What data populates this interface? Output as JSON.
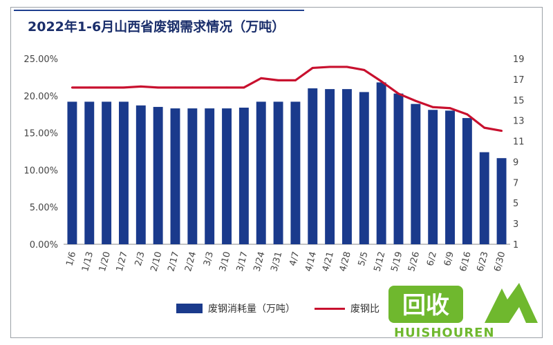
{
  "title": "2022年1-6月山西省废钢需求情况（万吨）",
  "colors": {
    "bar": "#1a3a8c",
    "line": "#c8102e",
    "title": "#1a2e6b",
    "watermark": "#6fb82e"
  },
  "legend": {
    "bar_label": "废钢消耗量（万吨）",
    "line_label": "废钢比"
  },
  "watermark": {
    "logo_text": "回收",
    "brand": "HUISHOUREN"
  },
  "chart_data": {
    "type": "bar+line",
    "categories": [
      "1/6",
      "1/13",
      "1/20",
      "1/27",
      "2/3",
      "2/10",
      "2/17",
      "2/24",
      "3/3",
      "3/10",
      "3/17",
      "3/24",
      "3/31",
      "4/7",
      "4/14",
      "4/21",
      "4/28",
      "5/5",
      "5/12",
      "5/19",
      "5/26",
      "6/2",
      "6/9",
      "6/16",
      "6/23",
      "6/30"
    ],
    "series": [
      {
        "name": "废钢消耗量（万吨）",
        "type": "bar",
        "axis": "left",
        "values": [
          19.2,
          19.2,
          19.2,
          19.2,
          18.7,
          18.5,
          18.3,
          18.3,
          18.3,
          18.3,
          18.4,
          19.2,
          19.2,
          19.2,
          21.0,
          20.9,
          20.9,
          20.5,
          21.8,
          20.3,
          18.9,
          18.1,
          18.0,
          17.0,
          12.4,
          11.6
        ]
      },
      {
        "name": "废钢比",
        "type": "line",
        "axis": "right",
        "values": [
          16.2,
          16.2,
          16.2,
          16.2,
          16.3,
          16.2,
          16.2,
          16.2,
          16.2,
          16.2,
          16.2,
          17.1,
          16.9,
          16.9,
          18.1,
          18.2,
          18.2,
          17.9,
          16.8,
          15.6,
          14.9,
          14.3,
          14.2,
          13.6,
          12.3,
          12.0
        ]
      }
    ],
    "y_left": {
      "lim": [
        0,
        25
      ],
      "ticks": [
        0,
        5,
        10,
        15,
        20,
        25
      ],
      "tick_labels": [
        "0.00%",
        "5.00%",
        "10.00%",
        "15.00%",
        "20.00%",
        "25.00%"
      ]
    },
    "y_right": {
      "lim": [
        1,
        19
      ],
      "ticks": [
        1,
        3,
        5,
        7,
        9,
        11,
        13,
        15,
        17,
        19
      ],
      "tick_labels": [
        "1",
        "3",
        "5",
        "7",
        "9",
        "11",
        "13",
        "15",
        "17",
        "19"
      ]
    },
    "grid": false,
    "legend_position": "bottom"
  }
}
